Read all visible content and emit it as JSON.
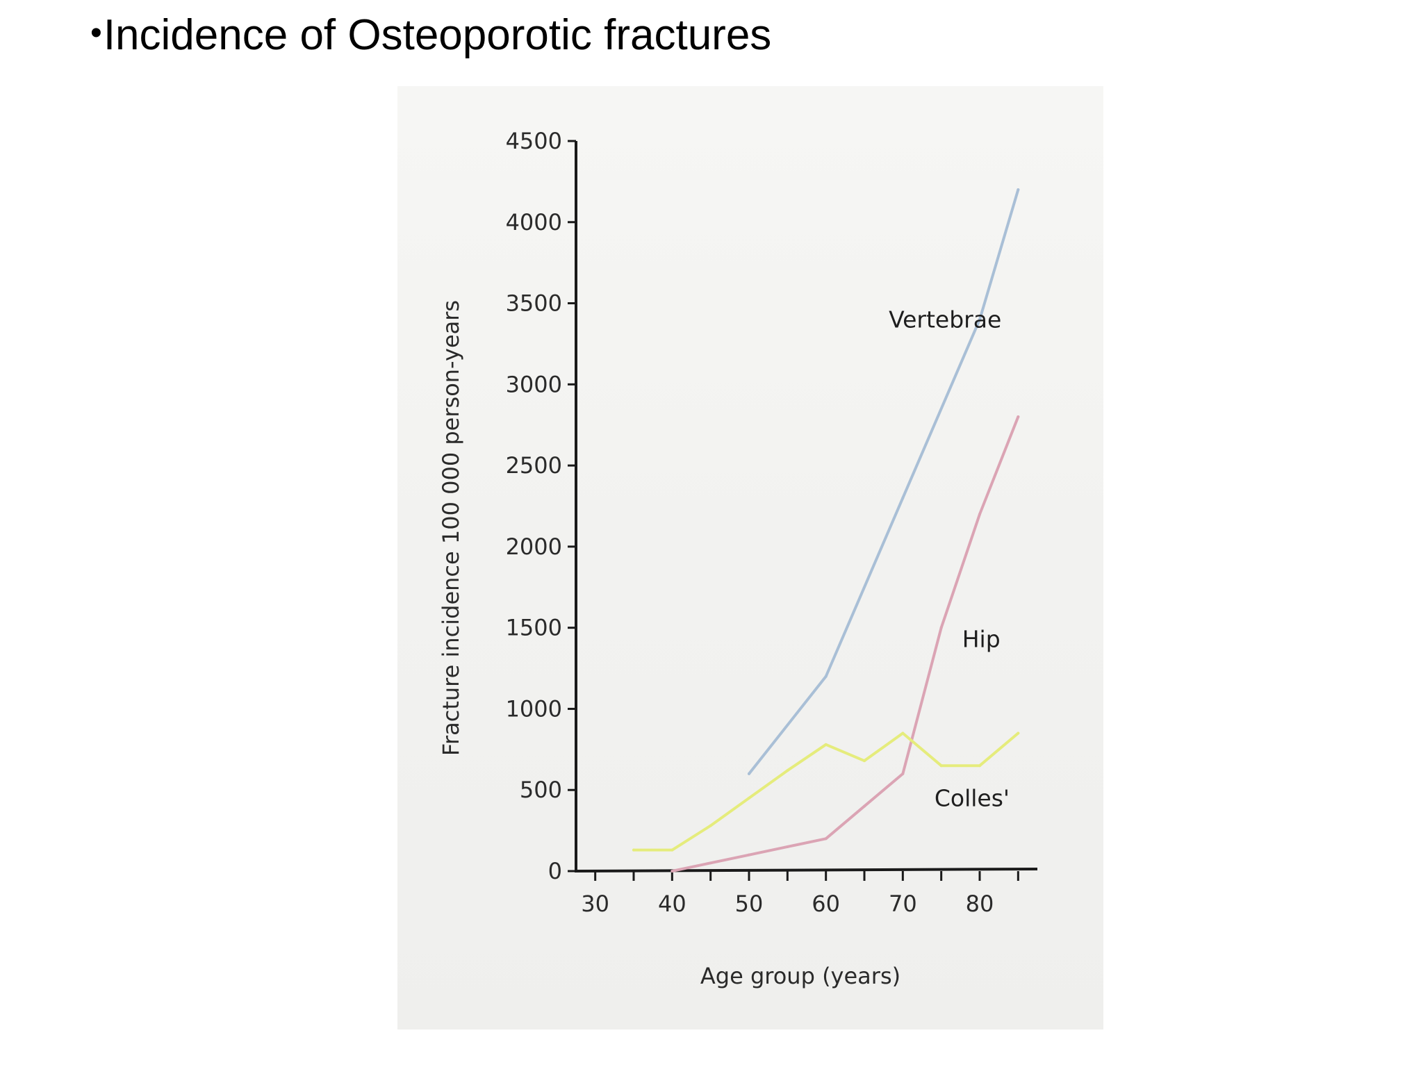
{
  "slide": {
    "bullet": "•",
    "title": "Incidence of Osteoporotic fractures"
  },
  "chart_data": {
    "type": "line",
    "title": "",
    "xlabel": "Age group (years)",
    "ylabel": "Fracture incidence 100 000 person-years",
    "xlim": [
      27.5,
      87.5
    ],
    "ylim": [
      0,
      4500
    ],
    "x_ticks": [
      30,
      40,
      50,
      60,
      70,
      80
    ],
    "x_minor_ticks": [
      35,
      45,
      55,
      65,
      75,
      85
    ],
    "y_ticks": [
      0,
      500,
      1000,
      1500,
      2000,
      2500,
      3000,
      3500,
      4000,
      4500
    ],
    "grid": false,
    "series": [
      {
        "name": "Vertebrae",
        "color": "#a9bfd6",
        "points": [
          [
            50,
            600
          ],
          [
            60,
            1200
          ],
          [
            70,
            2300
          ],
          [
            80,
            3400
          ],
          [
            85,
            4200
          ]
        ]
      },
      {
        "name": "Hip",
        "color": "#dba4b4",
        "points": [
          [
            40,
            0
          ],
          [
            45,
            50
          ],
          [
            50,
            100
          ],
          [
            55,
            150
          ],
          [
            60,
            200
          ],
          [
            65,
            400
          ],
          [
            70,
            600
          ],
          [
            75,
            1500
          ],
          [
            80,
            2200
          ],
          [
            85,
            2800
          ]
        ]
      },
      {
        "name": "Colles'",
        "color": "#e5ec7c",
        "points": [
          [
            35,
            130
          ],
          [
            40,
            130
          ],
          [
            45,
            280
          ],
          [
            50,
            450
          ],
          [
            55,
            620
          ],
          [
            60,
            780
          ],
          [
            65,
            680
          ],
          [
            70,
            850
          ],
          [
            75,
            650
          ],
          [
            80,
            650
          ],
          [
            85,
            850
          ]
        ]
      }
    ]
  },
  "colors": {
    "axis": "#1a1a1a",
    "figure_background": "#f3f3f1"
  }
}
